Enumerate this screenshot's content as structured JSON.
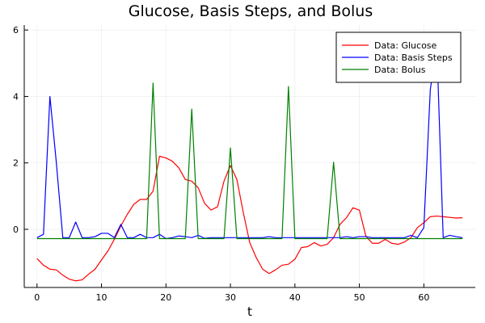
{
  "chart_data": {
    "type": "line",
    "title": "Glucose, Basis Steps, and Bolus",
    "xlabel": "t",
    "ylabel": "",
    "xlim": [
      -1.98,
      67.98
    ],
    "ylim": [
      -1.75,
      6.15
    ],
    "xticks": [
      0,
      10,
      20,
      30,
      40,
      50,
      60
    ],
    "yticks": [
      0,
      2,
      4,
      6
    ],
    "grid": true,
    "legend_position": "top-right",
    "x": [
      0,
      1,
      2,
      3,
      4,
      5,
      6,
      7,
      8,
      9,
      10,
      11,
      12,
      13,
      14,
      15,
      16,
      17,
      18,
      19,
      20,
      21,
      22,
      23,
      24,
      25,
      26,
      27,
      28,
      29,
      30,
      31,
      32,
      33,
      34,
      35,
      36,
      37,
      38,
      39,
      40,
      41,
      42,
      43,
      44,
      45,
      46,
      47,
      48,
      49,
      50,
      51,
      52,
      53,
      54,
      55,
      56,
      57,
      58,
      59,
      60,
      61,
      62,
      63,
      64,
      65,
      66
    ],
    "series": [
      {
        "name": "Data: Glucose",
        "color": "#ff0000",
        "values": [
          -0.88,
          -1.08,
          -1.2,
          -1.22,
          -1.38,
          -1.5,
          -1.55,
          -1.52,
          -1.35,
          -1.2,
          -0.92,
          -0.65,
          -0.3,
          0.1,
          0.45,
          0.75,
          0.9,
          0.9,
          1.15,
          2.2,
          2.15,
          2.05,
          1.85,
          1.5,
          1.45,
          1.25,
          0.78,
          0.58,
          0.68,
          1.45,
          1.92,
          1.5,
          0.5,
          -0.4,
          -0.85,
          -1.2,
          -1.33,
          -1.22,
          -1.08,
          -1.05,
          -0.9,
          -0.55,
          -0.52,
          -0.4,
          -0.5,
          -0.45,
          -0.25,
          0.15,
          0.35,
          0.65,
          0.58,
          -0.2,
          -0.42,
          -0.42,
          -0.3,
          -0.42,
          -0.45,
          -0.38,
          -0.25,
          0.05,
          0.2,
          0.38,
          0.4,
          0.38,
          0.36,
          0.34,
          0.35
        ]
      },
      {
        "name": "Data: Basis Steps",
        "color": "#0000ff",
        "values": [
          -0.25,
          -0.15,
          4.0,
          2.0,
          -0.25,
          -0.25,
          0.22,
          -0.25,
          -0.25,
          -0.22,
          -0.12,
          -0.12,
          -0.25,
          0.15,
          -0.25,
          -0.25,
          -0.15,
          -0.25,
          -0.25,
          -0.15,
          -0.28,
          -0.25,
          -0.2,
          -0.22,
          -0.25,
          -0.18,
          -0.27,
          -0.25,
          -0.25,
          -0.25,
          -0.25,
          -0.25,
          -0.25,
          -0.25,
          -0.25,
          -0.25,
          -0.22,
          -0.25,
          -0.25,
          -0.25,
          -0.25,
          -0.25,
          -0.25,
          -0.25,
          -0.25,
          -0.25,
          -0.25,
          -0.25,
          -0.22,
          -0.25,
          -0.22,
          -0.22,
          -0.25,
          -0.25,
          -0.25,
          -0.25,
          -0.25,
          -0.25,
          -0.18,
          -0.25,
          0.05,
          4.2,
          5.6,
          -0.25,
          -0.18,
          -0.22,
          -0.25
        ]
      },
      {
        "name": "Data: Bolus",
        "color": "#008000",
        "values": [
          -0.28,
          -0.28,
          -0.28,
          -0.28,
          -0.28,
          -0.28,
          -0.28,
          -0.28,
          -0.28,
          -0.28,
          -0.28,
          -0.28,
          -0.28,
          -0.28,
          -0.28,
          -0.28,
          -0.28,
          -0.28,
          4.4,
          -0.28,
          -0.28,
          -0.28,
          -0.28,
          -0.28,
          3.62,
          -0.28,
          -0.28,
          -0.28,
          -0.28,
          -0.28,
          2.45,
          -0.28,
          -0.28,
          -0.28,
          -0.28,
          -0.28,
          -0.28,
          -0.28,
          -0.28,
          4.3,
          -0.28,
          -0.28,
          -0.28,
          -0.28,
          -0.28,
          -0.28,
          2.02,
          -0.28,
          -0.28,
          -0.28,
          -0.28,
          -0.28,
          -0.28,
          -0.28,
          -0.28,
          -0.28,
          -0.28,
          -0.28,
          -0.28,
          -0.28,
          -0.28,
          -0.28,
          -0.28,
          -0.28,
          -0.28,
          -0.28,
          -0.28
        ]
      }
    ]
  }
}
